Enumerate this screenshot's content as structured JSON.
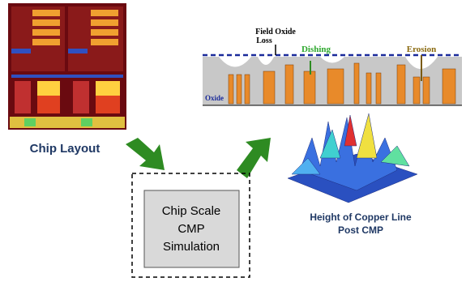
{
  "chip_layout": {
    "caption": "Chip Layout"
  },
  "simulation": {
    "lines": [
      "Chip Scale",
      "CMP",
      "Simulation"
    ]
  },
  "cross_section": {
    "field_oxide_loss": [
      "Field Oxide",
      "Loss"
    ],
    "dishing": "Dishing",
    "erosion": "Erosion",
    "oxide": "Oxide"
  },
  "result": {
    "caption": [
      "Height of Copper Line",
      "Post CMP"
    ]
  }
}
